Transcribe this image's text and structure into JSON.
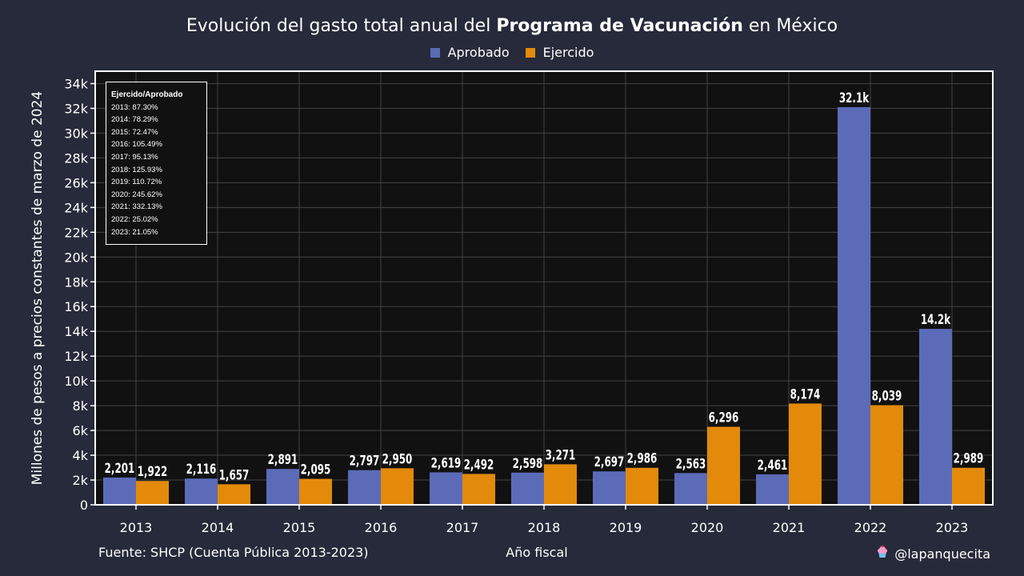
{
  "header": {
    "title_pre": "Evolución del gasto total anual del ",
    "title_bold": "Programa de Vacunación",
    "title_post": " en México"
  },
  "footer": {
    "source": "Fuente: SHCP (Cuenta Pública 2013-2023)",
    "handle": "@lapanquecita"
  },
  "icons": {
    "handle_icon": "cupcake-icon"
  },
  "colors": {
    "background": "#272a3a",
    "plot_bg": "#111111",
    "aprobado": "#5c6bb8",
    "ejercido": "#e38a0b",
    "grid": "#444444"
  },
  "ratio_box": {
    "title": "Ejercido/Aprobado",
    "lines": [
      "2013: 87.30%",
      "2014: 78.29%",
      "2015: 72.47%",
      "2016: 105.49%",
      "2017: 95.13%",
      "2018: 125.93%",
      "2019: 110.72%",
      "2020: 245.62%",
      "2021: 332.13%",
      "2022: 25.02%",
      "2023: 21.05%"
    ]
  },
  "chart_data": {
    "type": "bar",
    "xlabel": "Año fiscal",
    "ylabel": "Millones de pesos a precios constantes de marzo de 2024",
    "categories": [
      "2013",
      "2014",
      "2015",
      "2016",
      "2017",
      "2018",
      "2019",
      "2020",
      "2021",
      "2022",
      "2023"
    ],
    "ylim": [
      0,
      35000
    ],
    "yticks": [
      0,
      2000,
      4000,
      6000,
      8000,
      10000,
      12000,
      14000,
      16000,
      18000,
      20000,
      22000,
      24000,
      26000,
      28000,
      30000,
      32000,
      34000
    ],
    "ytick_labels": [
      "0",
      "2k",
      "4k",
      "6k",
      "8k",
      "10k",
      "12k",
      "14k",
      "16k",
      "18k",
      "20k",
      "22k",
      "24k",
      "26k",
      "28k",
      "30k",
      "32k",
      "34k"
    ],
    "grid": true,
    "legend": "top-center",
    "series": [
      {
        "name": "Aprobado",
        "values": [
          2201,
          2116,
          2891,
          2797,
          2619,
          2598,
          2697,
          2563,
          2461,
          32100,
          14200
        ],
        "labels": [
          "2,201",
          "2,116",
          "2,891",
          "2,797",
          "2,619",
          "2,598",
          "2,697",
          "2,563",
          "2,461",
          "32.1k",
          "14.2k"
        ]
      },
      {
        "name": "Ejercido",
        "values": [
          1922,
          1657,
          2095,
          2950,
          2492,
          3271,
          2986,
          6296,
          8174,
          8039,
          2989
        ],
        "labels": [
          "1,922",
          "1,657",
          "2,095",
          "2,950",
          "2,492",
          "3,271",
          "2,986",
          "6,296",
          "8,174",
          "8,039",
          "2,989"
        ]
      }
    ]
  }
}
